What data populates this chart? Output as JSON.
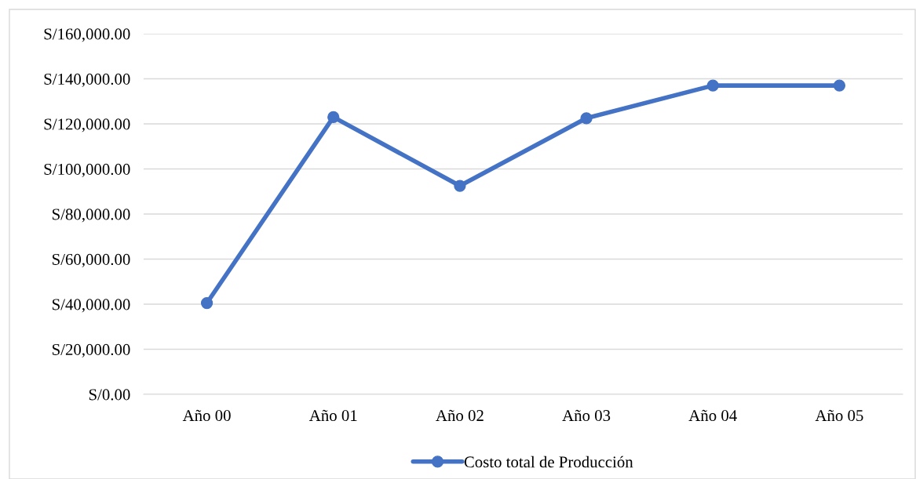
{
  "chart_data": {
    "type": "line",
    "categories": [
      "Año 00",
      "Año 01",
      "Año 02",
      "Año 03",
      "Año 04",
      "Año 05"
    ],
    "series": [
      {
        "name": "Costo total de Producción",
        "color": "#4472c4",
        "values": [
          40500,
          123000,
          92500,
          122500,
          137000,
          137000
        ]
      }
    ],
    "ylim": [
      0,
      160000
    ],
    "yticks": [
      {
        "value": 0,
        "label": "S/0.00"
      },
      {
        "value": 20000,
        "label": "S/20,000.00"
      },
      {
        "value": 40000,
        "label": "S/40,000.00"
      },
      {
        "value": 60000,
        "label": "S/60,000.00"
      },
      {
        "value": 80000,
        "label": "S/80,000.00"
      },
      {
        "value": 100000,
        "label": "S/100,000.00"
      },
      {
        "value": 120000,
        "label": "S/120,000.00"
      },
      {
        "value": 140000,
        "label": "S/140,000.00"
      },
      {
        "value": 160000,
        "label": "S/160,000.00"
      }
    ],
    "grid": "y",
    "legend": "bottom",
    "marker": "circle",
    "line_style": "solid"
  }
}
